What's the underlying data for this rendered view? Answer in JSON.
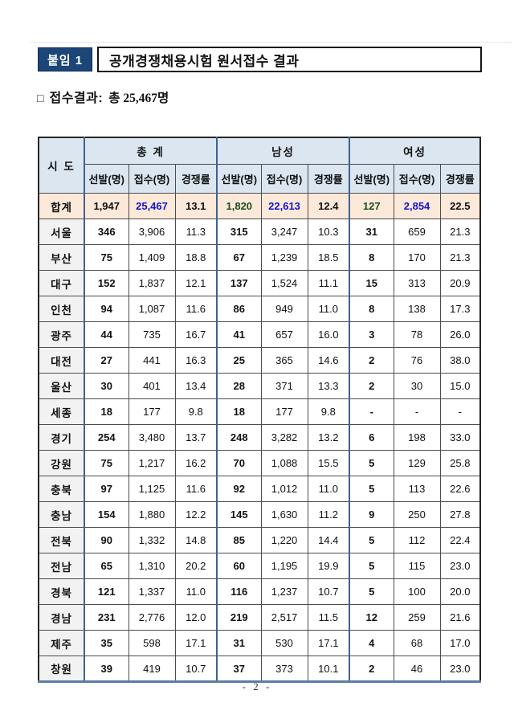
{
  "page": {
    "attachment_label": "붙임 1",
    "title": "공개경쟁채용시험 원서접수 결과",
    "summary_bullet": "□",
    "summary_label": "접수결과:",
    "summary_value": "총 25,467명",
    "page_number": "- 2 -"
  },
  "table": {
    "region_header": "시 도",
    "groups": [
      "총 계",
      "남성",
      "여성"
    ],
    "sub_headers": [
      "선발(명)",
      "접수(명)",
      "경쟁률"
    ],
    "total_row": {
      "region": "합계",
      "values": [
        "1,947",
        "25,467",
        "13.1",
        "1,820",
        "22,613",
        "12.4",
        "127",
        "2,854",
        "22.5"
      ]
    },
    "rows": [
      {
        "region": "서울",
        "values": [
          "346",
          "3,906",
          "11.3",
          "315",
          "3,247",
          "10.3",
          "31",
          "659",
          "21.3"
        ]
      },
      {
        "region": "부산",
        "values": [
          "75",
          "1,409",
          "18.8",
          "67",
          "1,239",
          "18.5",
          "8",
          "170",
          "21.3"
        ]
      },
      {
        "region": "대구",
        "values": [
          "152",
          "1,837",
          "12.1",
          "137",
          "1,524",
          "11.1",
          "15",
          "313",
          "20.9"
        ]
      },
      {
        "region": "인천",
        "values": [
          "94",
          "1,087",
          "11.6",
          "86",
          "949",
          "11.0",
          "8",
          "138",
          "17.3"
        ]
      },
      {
        "region": "광주",
        "values": [
          "44",
          "735",
          "16.7",
          "41",
          "657",
          "16.0",
          "3",
          "78",
          "26.0"
        ]
      },
      {
        "region": "대전",
        "values": [
          "27",
          "441",
          "16.3",
          "25",
          "365",
          "14.6",
          "2",
          "76",
          "38.0"
        ]
      },
      {
        "region": "울산",
        "values": [
          "30",
          "401",
          "13.4",
          "28",
          "371",
          "13.3",
          "2",
          "30",
          "15.0"
        ]
      },
      {
        "region": "세종",
        "values": [
          "18",
          "177",
          "9.8",
          "18",
          "177",
          "9.8",
          "-",
          "-",
          "-"
        ]
      },
      {
        "region": "경기",
        "values": [
          "254",
          "3,480",
          "13.7",
          "248",
          "3,282",
          "13.2",
          "6",
          "198",
          "33.0"
        ]
      },
      {
        "region": "강원",
        "values": [
          "75",
          "1,217",
          "16.2",
          "70",
          "1,088",
          "15.5",
          "5",
          "129",
          "25.8"
        ]
      },
      {
        "region": "충북",
        "values": [
          "97",
          "1,125",
          "11.6",
          "92",
          "1,012",
          "11.0",
          "5",
          "113",
          "22.6"
        ]
      },
      {
        "region": "충남",
        "values": [
          "154",
          "1,880",
          "12.2",
          "145",
          "1,630",
          "11.2",
          "9",
          "250",
          "27.8"
        ]
      },
      {
        "region": "전북",
        "values": [
          "90",
          "1,332",
          "14.8",
          "85",
          "1,220",
          "14.4",
          "5",
          "112",
          "22.4"
        ]
      },
      {
        "region": "전남",
        "values": [
          "65",
          "1,310",
          "20.2",
          "60",
          "1,195",
          "19.9",
          "5",
          "115",
          "23.0"
        ]
      },
      {
        "region": "경북",
        "values": [
          "121",
          "1,337",
          "11.0",
          "116",
          "1,237",
          "10.7",
          "5",
          "100",
          "20.0"
        ]
      },
      {
        "region": "경남",
        "values": [
          "231",
          "2,776",
          "12.0",
          "219",
          "2,517",
          "11.5",
          "12",
          "259",
          "21.6"
        ]
      },
      {
        "region": "제주",
        "values": [
          "35",
          "598",
          "17.1",
          "31",
          "530",
          "17.1",
          "4",
          "68",
          "17.0"
        ]
      },
      {
        "region": "창원",
        "values": [
          "39",
          "419",
          "10.7",
          "37",
          "373",
          "10.1",
          "2",
          "46",
          "23.0"
        ]
      }
    ]
  },
  "colors": {
    "badge_navy": "#1d4678",
    "header_blue": "#dce6f1",
    "total_peach": "#fde9d9",
    "region_gray": "#f2f2f2",
    "value_blue": "#1414cc",
    "value_green": "#1d4d1d",
    "group_border_blue": "#3f618f",
    "bottom_border_blue": "#5a7da3"
  }
}
